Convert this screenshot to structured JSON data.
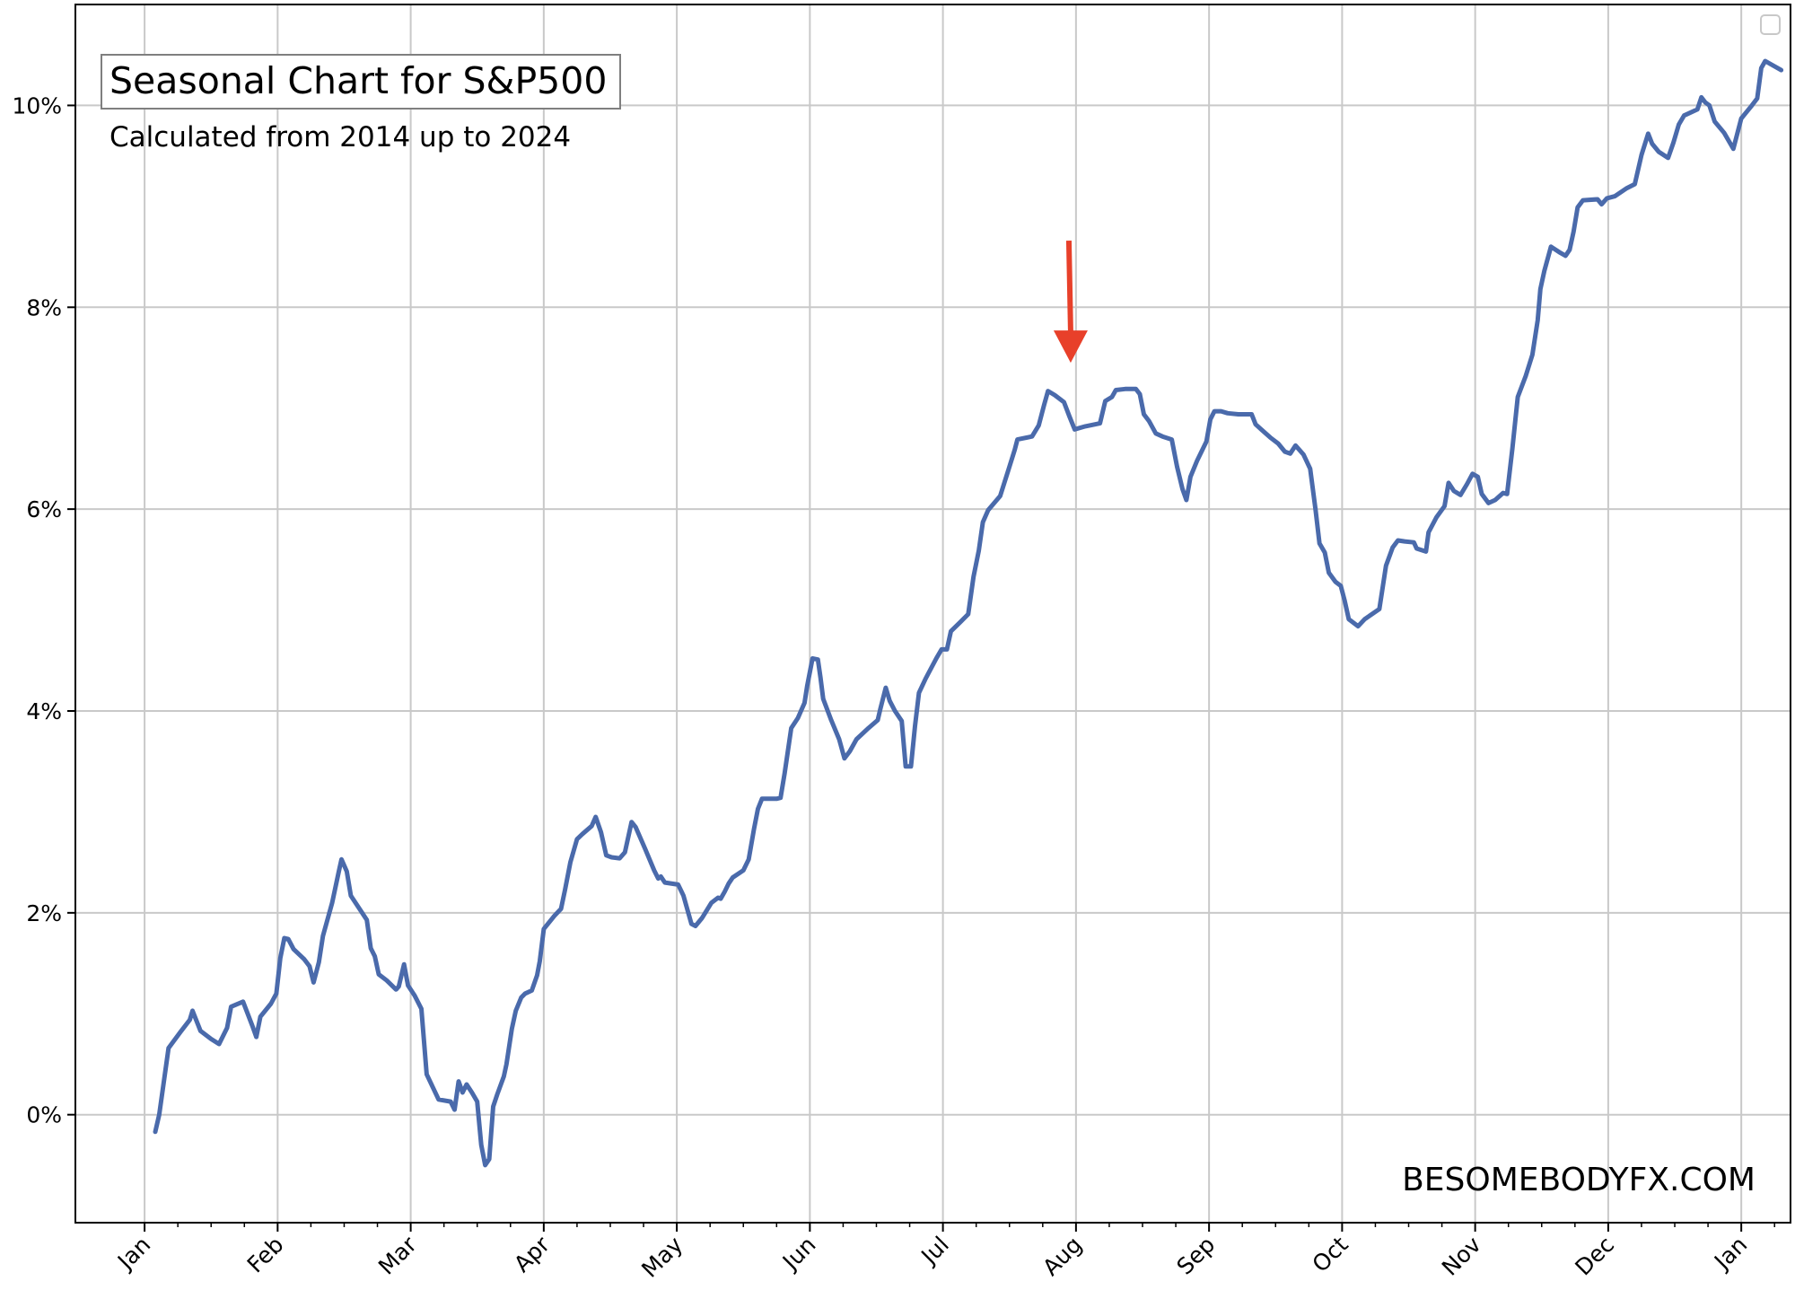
{
  "chart_data": {
    "type": "line",
    "title": "Seasonal Chart for S&P500",
    "subtitle": "Calculated from 2014 up to 2024",
    "watermark": "BESOMEBODYFX.COM",
    "xlabel": "",
    "ylabel": "",
    "x_tick_labels": [
      "Jan",
      "Feb",
      "Mar",
      "Apr",
      "May",
      "Jun",
      "Jul",
      "Aug",
      "Sep",
      "Oct",
      "Nov",
      "Dec",
      "Jan"
    ],
    "y_ticks": [
      0,
      2,
      4,
      6,
      8,
      10
    ],
    "y_tick_labels": [
      "0%",
      "2%",
      "4%",
      "6%",
      "8%",
      "10%"
    ],
    "ylim": [
      -1.07,
      11.0
    ],
    "xlim_months": [
      -0.52,
      12.37
    ],
    "grid": true,
    "legend": "empty-top-right",
    "line_color": "#4a6aab",
    "annotation": {
      "type": "arrow",
      "color": "#e8402a",
      "x_month": 6.96,
      "y_from": 8.66,
      "y_to": 7.45
    },
    "x_unit": "months since Jan 1",
    "series": [
      {
        "points": [
          [
            0.08,
            -0.17
          ],
          [
            0.11,
            0.0
          ],
          [
            0.18,
            0.66
          ],
          [
            0.27,
            0.82
          ],
          [
            0.34,
            0.94
          ],
          [
            0.36,
            1.03
          ],
          [
            0.42,
            0.83
          ],
          [
            0.5,
            0.75
          ],
          [
            0.56,
            0.7
          ],
          [
            0.62,
            0.86
          ],
          [
            0.65,
            1.07
          ],
          [
            0.74,
            1.12
          ],
          [
            0.81,
            0.88
          ],
          [
            0.84,
            0.77
          ],
          [
            0.87,
            0.97
          ],
          [
            0.95,
            1.1
          ],
          [
            0.99,
            1.2
          ],
          [
            1.02,
            1.55
          ],
          [
            1.05,
            1.75
          ],
          [
            1.08,
            1.74
          ],
          [
            1.12,
            1.64
          ],
          [
            1.2,
            1.54
          ],
          [
            1.24,
            1.47
          ],
          [
            1.27,
            1.31
          ],
          [
            1.31,
            1.51
          ],
          [
            1.34,
            1.77
          ],
          [
            1.41,
            2.1
          ],
          [
            1.46,
            2.41
          ],
          [
            1.48,
            2.53
          ],
          [
            1.52,
            2.41
          ],
          [
            1.55,
            2.17
          ],
          [
            1.62,
            2.03
          ],
          [
            1.67,
            1.93
          ],
          [
            1.7,
            1.65
          ],
          [
            1.73,
            1.57
          ],
          [
            1.76,
            1.39
          ],
          [
            1.82,
            1.33
          ],
          [
            1.89,
            1.24
          ],
          [
            1.91,
            1.27
          ],
          [
            1.95,
            1.49
          ],
          [
            1.98,
            1.28
          ],
          [
            2.03,
            1.18
          ],
          [
            2.08,
            1.05
          ],
          [
            2.12,
            0.4
          ],
          [
            2.21,
            0.15
          ],
          [
            2.3,
            0.13
          ],
          [
            2.33,
            0.05
          ],
          [
            2.36,
            0.33
          ],
          [
            2.39,
            0.22
          ],
          [
            2.42,
            0.3
          ],
          [
            2.46,
            0.22
          ],
          [
            2.5,
            0.13
          ],
          [
            2.53,
            -0.3
          ],
          [
            2.56,
            -0.5
          ],
          [
            2.59,
            -0.44
          ],
          [
            2.62,
            0.08
          ],
          [
            2.65,
            0.2
          ],
          [
            2.7,
            0.38
          ],
          [
            2.72,
            0.5
          ],
          [
            2.76,
            0.85
          ],
          [
            2.79,
            1.03
          ],
          [
            2.83,
            1.16
          ],
          [
            2.86,
            1.2
          ],
          [
            2.91,
            1.23
          ],
          [
            2.95,
            1.38
          ],
          [
            2.97,
            1.52
          ],
          [
            3.0,
            1.84
          ],
          [
            3.08,
            1.97
          ],
          [
            3.13,
            2.04
          ],
          [
            3.16,
            2.23
          ],
          [
            3.2,
            2.5
          ],
          [
            3.25,
            2.73
          ],
          [
            3.29,
            2.78
          ],
          [
            3.36,
            2.86
          ],
          [
            3.39,
            2.95
          ],
          [
            3.43,
            2.8
          ],
          [
            3.47,
            2.57
          ],
          [
            3.51,
            2.55
          ],
          [
            3.57,
            2.54
          ],
          [
            3.61,
            2.6
          ],
          [
            3.66,
            2.9
          ],
          [
            3.69,
            2.85
          ],
          [
            3.76,
            2.64
          ],
          [
            3.83,
            2.42
          ],
          [
            3.86,
            2.34
          ],
          [
            3.88,
            2.36
          ],
          [
            3.91,
            2.3
          ],
          [
            4.01,
            2.28
          ],
          [
            4.05,
            2.17
          ],
          [
            4.11,
            1.89
          ],
          [
            4.14,
            1.87
          ],
          [
            4.19,
            1.95
          ],
          [
            4.26,
            2.1
          ],
          [
            4.31,
            2.15
          ],
          [
            4.33,
            2.14
          ],
          [
            4.36,
            2.21
          ],
          [
            4.39,
            2.29
          ],
          [
            4.42,
            2.35
          ],
          [
            4.5,
            2.42
          ],
          [
            4.54,
            2.53
          ],
          [
            4.58,
            2.83
          ],
          [
            4.61,
            3.03
          ],
          [
            4.64,
            3.13
          ],
          [
            4.75,
            3.13
          ],
          [
            4.78,
            3.14
          ],
          [
            4.81,
            3.38
          ],
          [
            4.86,
            3.83
          ],
          [
            4.91,
            3.93
          ],
          [
            4.96,
            4.08
          ],
          [
            4.98,
            4.25
          ],
          [
            5.02,
            4.52
          ],
          [
            5.06,
            4.51
          ],
          [
            5.08,
            4.33
          ],
          [
            5.1,
            4.12
          ],
          [
            5.16,
            3.91
          ],
          [
            5.22,
            3.72
          ],
          [
            5.26,
            3.53
          ],
          [
            5.3,
            3.6
          ],
          [
            5.35,
            3.72
          ],
          [
            5.44,
            3.83
          ],
          [
            5.51,
            3.91
          ],
          [
            5.53,
            4.02
          ],
          [
            5.57,
            4.23
          ],
          [
            5.6,
            4.1
          ],
          [
            5.64,
            4.0
          ],
          [
            5.69,
            3.9
          ],
          [
            5.72,
            3.45
          ],
          [
            5.76,
            3.45
          ],
          [
            5.79,
            3.85
          ],
          [
            5.82,
            4.18
          ],
          [
            5.87,
            4.32
          ],
          [
            5.95,
            4.52
          ],
          [
            5.99,
            4.61
          ],
          [
            6.03,
            4.61
          ],
          [
            6.06,
            4.79
          ],
          [
            6.13,
            4.88
          ],
          [
            6.19,
            4.96
          ],
          [
            6.23,
            5.33
          ],
          [
            6.27,
            5.59
          ],
          [
            6.3,
            5.87
          ],
          [
            6.34,
            5.99
          ],
          [
            6.43,
            6.13
          ],
          [
            6.49,
            6.38
          ],
          [
            6.54,
            6.59
          ],
          [
            6.56,
            6.69
          ],
          [
            6.67,
            6.72
          ],
          [
            6.72,
            6.83
          ],
          [
            6.76,
            7.03
          ],
          [
            6.79,
            7.17
          ],
          [
            6.84,
            7.13
          ],
          [
            6.91,
            7.06
          ],
          [
            6.95,
            6.92
          ],
          [
            6.99,
            6.79
          ],
          [
            7.07,
            6.82
          ],
          [
            7.18,
            6.85
          ],
          [
            7.22,
            7.07
          ],
          [
            7.27,
            7.11
          ],
          [
            7.3,
            7.18
          ],
          [
            7.37,
            7.19
          ],
          [
            7.45,
            7.19
          ],
          [
            7.48,
            7.14
          ],
          [
            7.51,
            6.94
          ],
          [
            7.55,
            6.87
          ],
          [
            7.6,
            6.75
          ],
          [
            7.65,
            6.72
          ],
          [
            7.72,
            6.69
          ],
          [
            7.76,
            6.42
          ],
          [
            7.8,
            6.2
          ],
          [
            7.83,
            6.09
          ],
          [
            7.86,
            6.32
          ],
          [
            7.91,
            6.48
          ],
          [
            7.98,
            6.67
          ],
          [
            8.01,
            6.89
          ],
          [
            8.04,
            6.97
          ],
          [
            8.09,
            6.97
          ],
          [
            8.14,
            6.95
          ],
          [
            8.22,
            6.94
          ],
          [
            8.32,
            6.94
          ],
          [
            8.35,
            6.84
          ],
          [
            8.4,
            6.78
          ],
          [
            8.46,
            6.71
          ],
          [
            8.52,
            6.65
          ],
          [
            8.57,
            6.57
          ],
          [
            8.61,
            6.55
          ],
          [
            8.65,
            6.63
          ],
          [
            8.71,
            6.54
          ],
          [
            8.76,
            6.4
          ],
          [
            8.8,
            6.0
          ],
          [
            8.83,
            5.66
          ],
          [
            8.87,
            5.57
          ],
          [
            8.9,
            5.37
          ],
          [
            8.95,
            5.28
          ],
          [
            8.99,
            5.24
          ],
          [
            9.02,
            5.09
          ],
          [
            9.05,
            4.91
          ],
          [
            9.12,
            4.84
          ],
          [
            9.17,
            4.91
          ],
          [
            9.28,
            5.01
          ],
          [
            9.33,
            5.44
          ],
          [
            9.38,
            5.62
          ],
          [
            9.42,
            5.69
          ],
          [
            9.47,
            5.68
          ],
          [
            9.54,
            5.67
          ],
          [
            9.56,
            5.61
          ],
          [
            9.63,
            5.58
          ],
          [
            9.65,
            5.77
          ],
          [
            9.71,
            5.92
          ],
          [
            9.77,
            6.03
          ],
          [
            9.8,
            6.26
          ],
          [
            9.84,
            6.18
          ],
          [
            9.89,
            6.14
          ],
          [
            9.94,
            6.25
          ],
          [
            9.98,
            6.35
          ],
          [
            10.02,
            6.32
          ],
          [
            10.05,
            6.15
          ],
          [
            10.1,
            6.06
          ],
          [
            10.15,
            6.09
          ],
          [
            10.21,
            6.16
          ],
          [
            10.24,
            6.15
          ],
          [
            10.28,
            6.6
          ],
          [
            10.32,
            7.11
          ],
          [
            10.38,
            7.32
          ],
          [
            10.43,
            7.53
          ],
          [
            10.47,
            7.87
          ],
          [
            10.49,
            8.18
          ],
          [
            10.52,
            8.36
          ],
          [
            10.57,
            8.6
          ],
          [
            10.64,
            8.54
          ],
          [
            10.68,
            8.51
          ],
          [
            10.71,
            8.57
          ],
          [
            10.74,
            8.75
          ],
          [
            10.77,
            8.99
          ],
          [
            10.81,
            9.06
          ],
          [
            10.92,
            9.07
          ],
          [
            10.95,
            9.02
          ],
          [
            10.99,
            9.08
          ],
          [
            11.05,
            9.1
          ],
          [
            11.14,
            9.18
          ],
          [
            11.2,
            9.22
          ],
          [
            11.25,
            9.51
          ],
          [
            11.3,
            9.72
          ],
          [
            11.33,
            9.62
          ],
          [
            11.38,
            9.54
          ],
          [
            11.45,
            9.48
          ],
          [
            11.49,
            9.63
          ],
          [
            11.53,
            9.81
          ],
          [
            11.57,
            9.9
          ],
          [
            11.67,
            9.96
          ],
          [
            11.7,
            10.08
          ],
          [
            11.73,
            10.03
          ],
          [
            11.76,
            10.0
          ],
          [
            11.8,
            9.84
          ],
          [
            11.87,
            9.73
          ],
          [
            11.94,
            9.57
          ],
          [
            12.0,
            9.87
          ],
          [
            12.08,
            10.0
          ],
          [
            12.12,
            10.07
          ],
          [
            12.15,
            10.37
          ],
          [
            12.18,
            10.44
          ],
          [
            12.3,
            10.35
          ]
        ]
      }
    ]
  }
}
